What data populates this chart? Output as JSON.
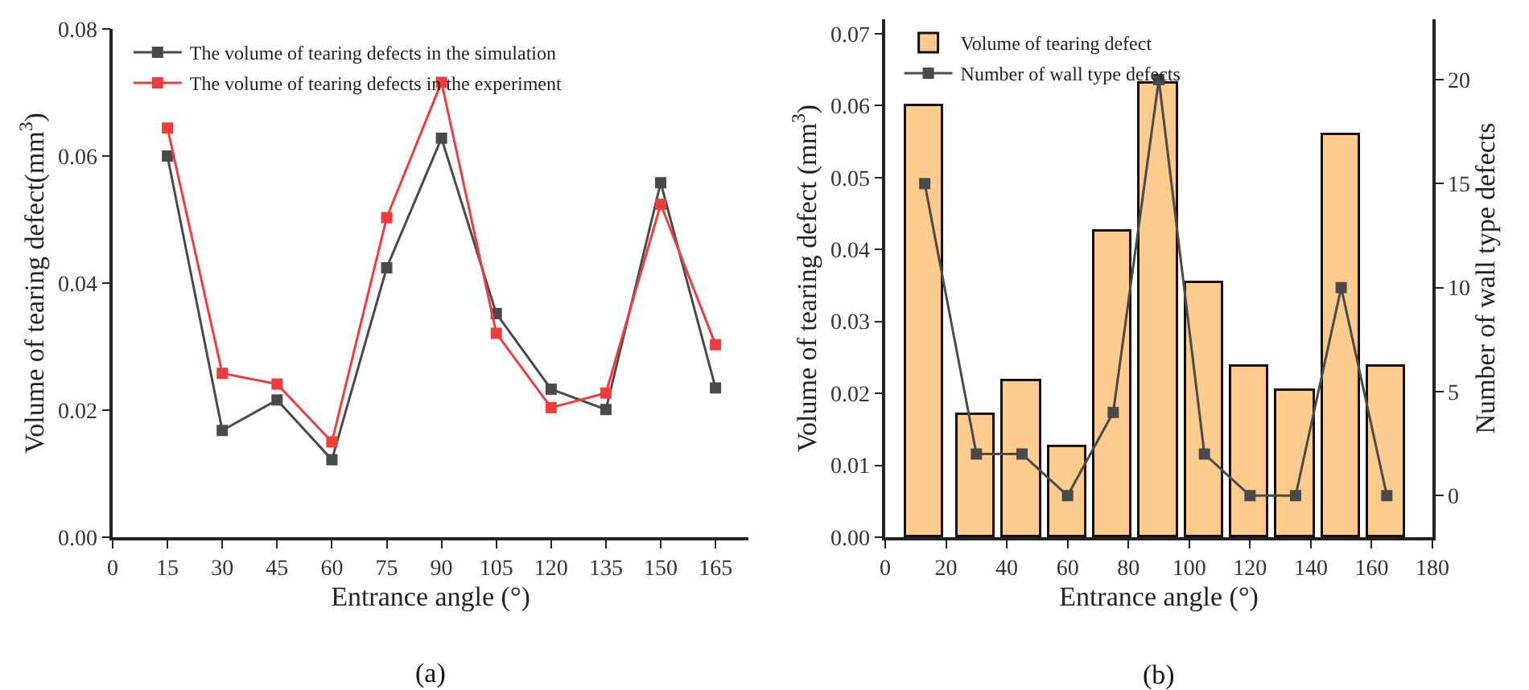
{
  "chart_data": [
    {
      "type": "line",
      "xlabel": "Entrance angle (°)",
      "ylabel": "Volume of tearing defect(mm$^{3}$)",
      "annotations": [
        "(a)"
      ],
      "x": [
        15,
        30,
        45,
        60,
        75,
        90,
        105,
        120,
        135,
        150,
        165
      ],
      "xlim": [
        0,
        174
      ],
      "xticks": [
        0,
        15,
        30,
        45,
        60,
        75,
        90,
        105,
        120,
        135,
        150,
        165
      ],
      "ylim": [
        0,
        0.08
      ],
      "yticks": [
        {
          "value": 0,
          "label": "0.00"
        },
        0.02,
        0.04,
        0.06,
        0.08
      ],
      "marker": "square",
      "line_style": "solid",
      "grid": false,
      "legend": "top left",
      "series": [
        {
          "name": "The volume of tearing defects in the simulation",
          "color": "#4a4a4a",
          "values": [
            0.06,
            0.0168,
            0.0216,
            0.0122,
            0.0424,
            0.0628,
            0.0352,
            0.0233,
            0.0201,
            0.0558,
            0.0235
          ]
        },
        {
          "name": "The volume of tearing defects in the experiment",
          "color": "#f03c3c",
          "values": [
            0.0644,
            0.0258,
            0.0241,
            0.015,
            0.0503,
            0.0716,
            0.0321,
            0.0204,
            0.0227,
            0.0524,
            0.0303
          ]
        }
      ]
    },
    {
      "type": "bar",
      "xlabel": "Entrance angle (°)",
      "ylabel": "Volume of tearing defect (mm$^{3}$)",
      "y2label": "Number of wall type defects",
      "annotations": [
        "(b)"
      ],
      "x": [
        13,
        30,
        45,
        60,
        75,
        90,
        105,
        120,
        135,
        150,
        165
      ],
      "xlim": [
        0,
        180
      ],
      "xticks": [
        0,
        20,
        40,
        60,
        80,
        100,
        120,
        140,
        160,
        180
      ],
      "ylim": [
        0,
        0.072
      ],
      "yticks": [
        {
          "value": 0,
          "label": "0.00"
        },
        0.01,
        0.02,
        0.03,
        0.04,
        0.05,
        0.06,
        0.07
      ],
      "y2lim": [
        -2,
        22.9
      ],
      "y2ticks": [
        0,
        5,
        10,
        15,
        20
      ],
      "marker": "square",
      "grid": false,
      "legend": "top left",
      "series": [
        {
          "name": "Volume of tearing defect",
          "color": "#fdcb8e",
          "values": [
            0.06,
            0.0171,
            0.0218,
            0.0125,
            0.0425,
            0.063,
            0.0354,
            0.0236,
            0.0203,
            0.056,
            0.0238
          ]
        },
        {
          "name": "Number of wall type defects",
          "type": "line",
          "axis": "y2",
          "color": "#4a4a4a",
          "values": [
            15,
            2,
            2,
            0,
            4,
            20,
            2,
            0,
            0,
            10,
            0
          ]
        }
      ]
    }
  ]
}
